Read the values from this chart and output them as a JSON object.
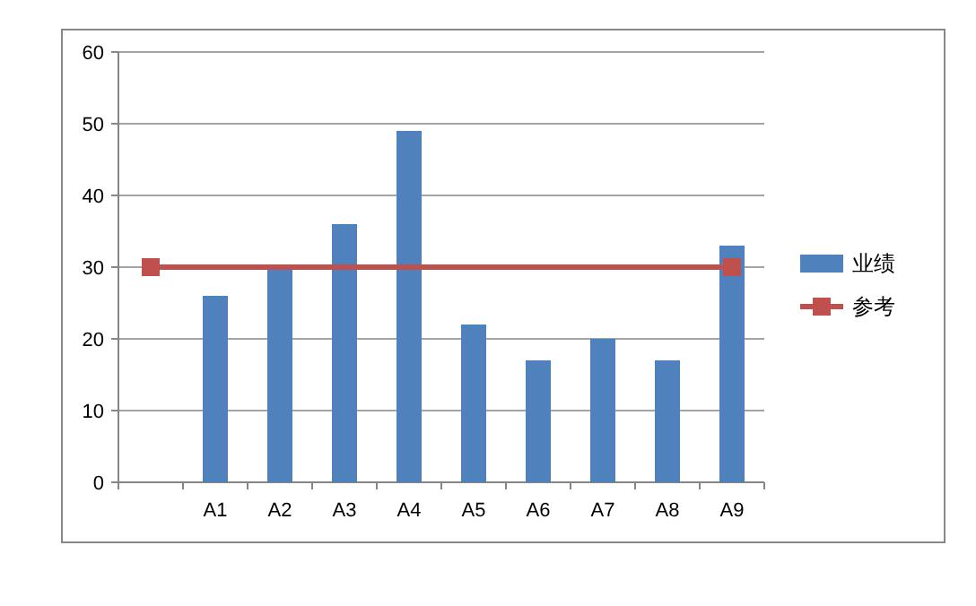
{
  "chart_data": {
    "type": "bar",
    "categories": [
      null,
      "A1",
      "A2",
      "A3",
      "A4",
      "A5",
      "A6",
      "A7",
      "A8",
      "A9"
    ],
    "series": [
      {
        "name": "业绩",
        "color": "#4f81bd",
        "values": [
          null,
          26,
          30,
          36,
          49,
          22,
          17,
          20,
          17,
          33
        ]
      },
      {
        "name": "参考",
        "type": "line",
        "color": "#c0504d",
        "marker": "square",
        "values": [
          30,
          null,
          null,
          null,
          null,
          null,
          null,
          null,
          null,
          30
        ]
      }
    ],
    "ylim": [
      0,
      60
    ],
    "yticks": [
      0,
      10,
      20,
      30,
      40,
      50,
      60
    ],
    "grid": "y",
    "legend": "right"
  }
}
